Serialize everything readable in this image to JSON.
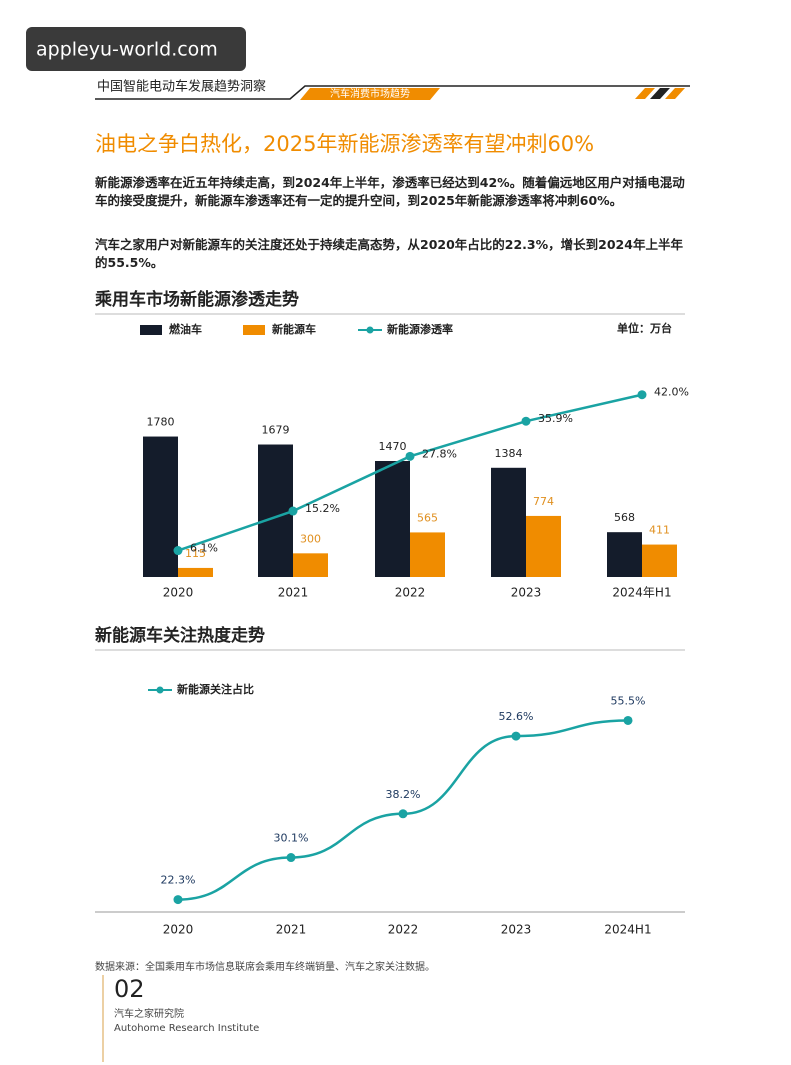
{
  "watermark": "appleyu-world.com",
  "header": {
    "title": "中国智能电动车发展趋势洞察",
    "tab": "汽车消费市场趋势"
  },
  "headline": "油电之争白热化，2025年新能源渗透率有望冲刺60%",
  "paragraphs": [
    "新能源渗透率在近五年持续走高，到2024年上半年，渗透率已经达到42%。随着偏远地区用户对插电混动车的接受度提升，新能源车渗透率还有一定的提升空间，到2025年新能源渗透率将冲刺60%。",
    "汽车之家用户对新能源车的关注度还处于持续走高态势，从2020年占比的22.3%，增长到2024年上半年的55.5%。"
  ],
  "chart_data": [
    {
      "type": "bar",
      "title": "乘用车市场新能源渗透走势",
      "unit": "单位：万台",
      "categories": [
        "2020",
        "2021",
        "2022",
        "2023",
        "2024年H1"
      ],
      "series": [
        {
          "name": "燃油车",
          "color": "#141c2b",
          "values": [
            1780,
            1679,
            1470,
            1384,
            568
          ]
        },
        {
          "name": "新能源车",
          "color": "#f08c00",
          "values": [
            115,
            300,
            565,
            774,
            411
          ]
        },
        {
          "name": "新能源渗透率",
          "color": "#1aa3a3",
          "type": "line",
          "axis": "y2",
          "values": [
            6.1,
            15.2,
            27.8,
            35.9,
            42.0
          ],
          "value_labels": [
            "6.1%",
            "15.2%",
            "27.8%",
            "35.9%",
            "42.0%"
          ]
        }
      ],
      "ylim": [
        0,
        2750
      ],
      "y2lim": [
        0,
        50
      ]
    },
    {
      "type": "line",
      "title": "新能源车关注热度走势",
      "categories": [
        "2020",
        "2021",
        "2022",
        "2023",
        "2024H1"
      ],
      "series": [
        {
          "name": "新能源关注占比",
          "color": "#1aa3a3",
          "values": [
            22.3,
            30.1,
            38.2,
            52.6,
            55.5
          ],
          "value_labels": [
            "22.3%",
            "30.1%",
            "38.2%",
            "52.6%",
            "55.5%"
          ]
        }
      ],
      "ylim": [
        20,
        63
      ]
    }
  ],
  "source": "数据来源：全国乘用车市场信息联席会乘用车终端销量、汽车之家关注数据。",
  "footer": {
    "page": "02",
    "org": "汽车之家研究院",
    "org_en": "Autohome Research Institute"
  }
}
